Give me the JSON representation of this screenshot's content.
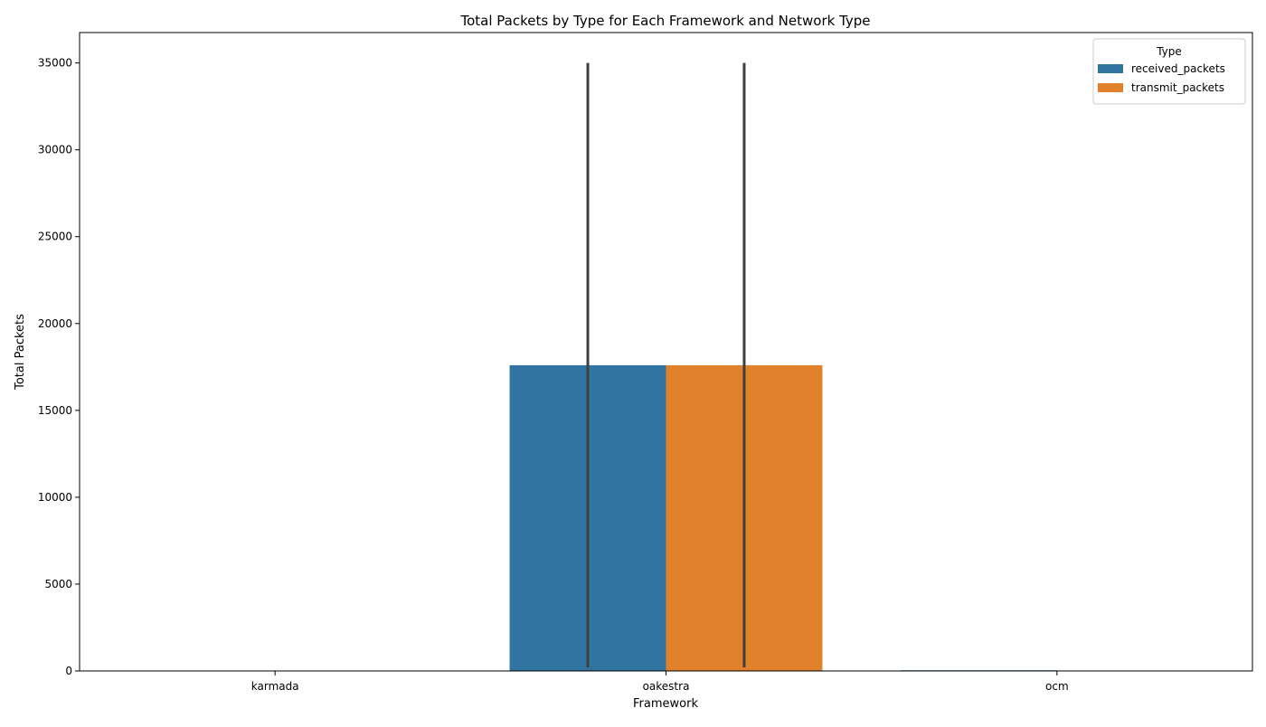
{
  "chart_data": {
    "type": "bar",
    "title": "Total Packets by Type for Each Framework and Network Type",
    "xlabel": "Framework",
    "ylabel": "Total Packets",
    "categories": [
      "karmada",
      "oakestra",
      "ocm"
    ],
    "ylim": [
      0,
      36750
    ],
    "yticks": [
      0,
      5000,
      10000,
      15000,
      20000,
      25000,
      30000,
      35000
    ],
    "grid": false,
    "legend": {
      "title": "Type",
      "placement": "top-right"
    },
    "series": [
      {
        "name": "received_packets",
        "color": "#3274a1",
        "values": [
          0,
          17600,
          40
        ],
        "error_low": [
          null,
          200,
          null
        ],
        "error_high": [
          null,
          35000,
          null
        ]
      },
      {
        "name": "transmit_packets",
        "color": "#e1812c",
        "values": [
          0,
          17600,
          0
        ],
        "error_low": [
          null,
          200,
          null
        ],
        "error_high": [
          null,
          35000,
          null
        ]
      }
    ],
    "errorbar_color": "#3f3f3f"
  }
}
